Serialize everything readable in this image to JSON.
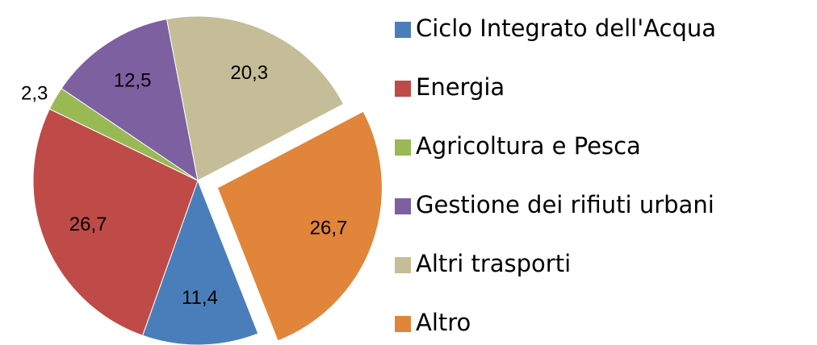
{
  "chart_data": {
    "type": "pie",
    "categories": [
      "Ciclo Integrato dell'Acqua",
      "Energia",
      "Agricoltura e Pesca",
      "Gestione dei rifiuti urbani",
      "Altri trasporti",
      "Altro"
    ],
    "values": [
      11.4,
      26.7,
      2.3,
      12.5,
      20.3,
      26.7
    ],
    "value_labels": [
      "11,4",
      "26,7",
      "2,3",
      "12,5",
      "20,3",
      "26,7"
    ],
    "colors": [
      "#4a7ebb",
      "#be4b48",
      "#98b954",
      "#7d60a0",
      "#c4bd97",
      "#e0853a"
    ],
    "legend": "right"
  }
}
